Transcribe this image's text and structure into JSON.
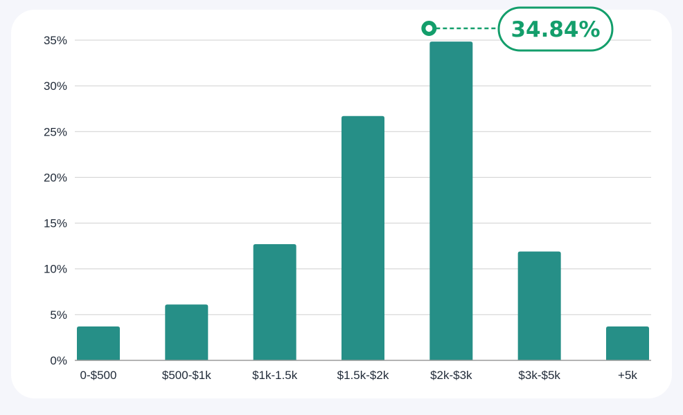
{
  "chart_data": {
    "type": "bar",
    "categories": [
      "0-$500",
      "$500-$1k",
      "$1k-1.5k",
      "$1.5k-$2k",
      "$2k-$3k",
      "$3k-$5k",
      "+5k"
    ],
    "values": [
      3.7,
      6.1,
      12.7,
      26.7,
      34.84,
      11.9,
      3.7
    ],
    "ylim": [
      0,
      35
    ],
    "yticks": [
      0,
      5,
      10,
      15,
      20,
      25,
      30,
      35
    ],
    "ytick_labels": [
      "0%",
      "5%",
      "10%",
      "15%",
      "20%",
      "25%",
      "30%",
      "35%"
    ],
    "grid": true,
    "title": "",
    "xlabel": "",
    "ylabel": "",
    "annotation": {
      "category": "$2k-$3k",
      "value": 34.84,
      "text": "34.84%"
    },
    "colors": {
      "bar": "#268f87",
      "grid": "#cfcfcf",
      "axis": "#9a9a9a",
      "callout": "#139e6b"
    }
  }
}
